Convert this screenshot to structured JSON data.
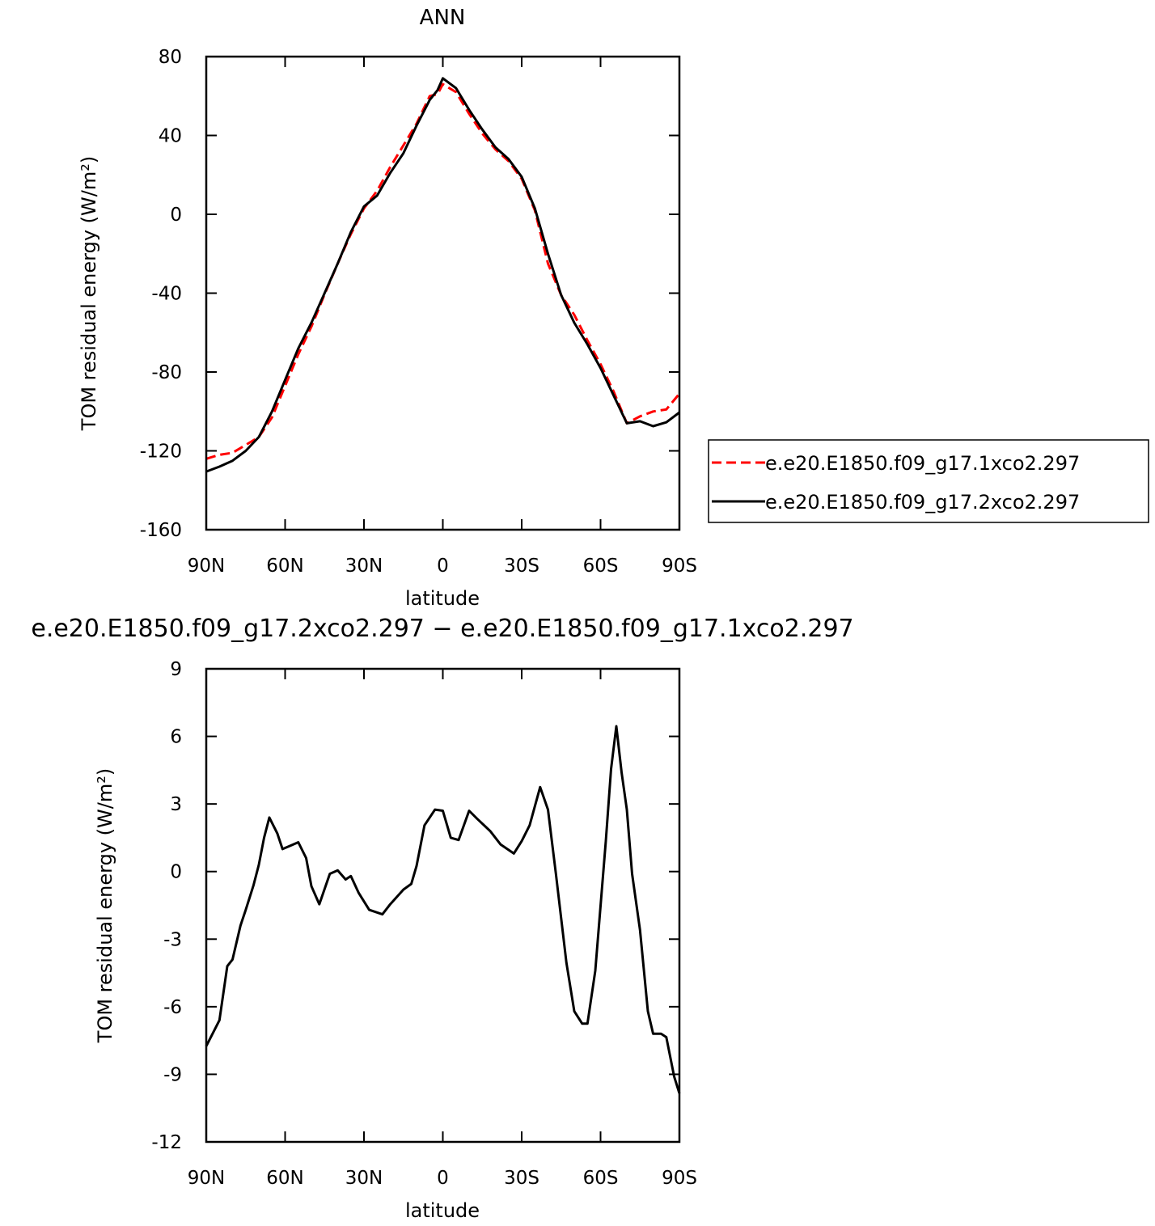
{
  "chart_data": [
    {
      "type": "line",
      "title": "ANN",
      "xlabel": "latitude",
      "ylabel": "TOM residual energy (W/m²)",
      "x": [
        90,
        85,
        80,
        75,
        70,
        65,
        60,
        55,
        50,
        45,
        40,
        35,
        30,
        25,
        20,
        15,
        10,
        5,
        2,
        0,
        -5,
        -10,
        -15,
        -20,
        -25,
        -30,
        -35,
        -40,
        -45,
        -50,
        -55,
        -60,
        -65,
        -70,
        -75,
        -80,
        -85,
        -90
      ],
      "series": [
        {
          "name": "e.e20.E1850.f09_g17.1xco2.297",
          "color": "#ff0000",
          "dash": true,
          "values": [
            -124,
            -122,
            -121,
            -117,
            -113,
            -103,
            -87,
            -71,
            -57,
            -40.6,
            -25,
            -10,
            3,
            12,
            24,
            35,
            46,
            60,
            61,
            66,
            62,
            51,
            41,
            33,
            27,
            18,
            2,
            -25,
            -41,
            -51,
            -64,
            -76,
            -90,
            -106,
            -102.5,
            -100,
            -99,
            -91
          ]
        },
        {
          "name": "e.e20.E1850.f09_g17.2xco2.297",
          "color": "#000000",
          "dash": false,
          "values": [
            -130.5,
            -128,
            -125,
            -120,
            -113,
            -100,
            -84,
            -68,
            -55,
            -40,
            -25,
            -9,
            4,
            9.5,
            21,
            31,
            45,
            58,
            63,
            69,
            64,
            53,
            43,
            34,
            28,
            19,
            3,
            -20,
            -41,
            -55,
            -66,
            -78,
            -92,
            -106,
            -105,
            -107.5,
            -105.5,
            -100.5
          ]
        }
      ],
      "xlim": [
        90,
        -90
      ],
      "xticks": [
        {
          "value": 90,
          "label": "90N"
        },
        {
          "value": 60,
          "label": "60N"
        },
        {
          "value": 30,
          "label": "30N"
        },
        0,
        {
          "value": -30,
          "label": "30S"
        },
        {
          "value": -60,
          "label": "60S"
        },
        {
          "value": -90,
          "label": "90S"
        }
      ],
      "ylim": [
        -160,
        80
      ],
      "yticks": [
        -160,
        -120,
        -80,
        -40,
        0,
        40,
        80
      ],
      "legend": "right"
    },
    {
      "type": "line",
      "title": "e.e20.E1850.f09_g17.2xco2.297 − e.e20.E1850.f09_g17.1xco2.297",
      "xlabel": "latitude",
      "ylabel": "TOM residual energy (W/m²)",
      "x": [
        90,
        85,
        82,
        80,
        77,
        75,
        72,
        70,
        68,
        66,
        63,
        61,
        58,
        55,
        52,
        50,
        47,
        43,
        40,
        37,
        35,
        32,
        28,
        23,
        20,
        15,
        12,
        10,
        7,
        3,
        0,
        -3,
        -6,
        -10,
        -13,
        -18,
        -22,
        -27,
        -30,
        -33,
        -37,
        -40,
        -43,
        -47,
        -50,
        -53,
        -55,
        -58,
        -62,
        -64,
        -66,
        -68,
        -70,
        -72,
        -75,
        -78,
        -80,
        -83,
        -85,
        -88,
        -90
      ],
      "series": [
        {
          "color": "#000000",
          "dash": false,
          "values": [
            -7.75,
            -6.6,
            -4.2,
            -3.9,
            -2.4,
            -1.7,
            -0.6,
            0.3,
            1.5,
            2.4,
            1.7,
            1.0,
            1.15,
            1.3,
            0.6,
            -0.65,
            -1.45,
            -0.1,
            0.05,
            -0.35,
            -0.2,
            -0.95,
            -1.7,
            -1.9,
            -1.45,
            -0.8,
            -0.55,
            0.25,
            2.05,
            2.75,
            2.7,
            1.5,
            1.4,
            2.7,
            2.35,
            1.8,
            1.2,
            0.8,
            1.35,
            2.05,
            3.75,
            2.75,
            -0.1,
            -4.05,
            -6.2,
            -6.75,
            -6.75,
            -4.4,
            1.35,
            4.55,
            6.45,
            4.4,
            2.75,
            -0.1,
            -2.6,
            -6.2,
            -7.2,
            -7.2,
            -7.35,
            -9.1,
            -9.85
          ]
        }
      ],
      "xlim": [
        90,
        -90
      ],
      "xticks": [
        {
          "value": 90,
          "label": "90N"
        },
        {
          "value": 60,
          "label": "60N"
        },
        {
          "value": 30,
          "label": "30N"
        },
        0,
        {
          "value": -30,
          "label": "30S"
        },
        {
          "value": -60,
          "label": "60S"
        },
        {
          "value": -90,
          "label": "90S"
        }
      ],
      "ylim": [
        -12,
        9
      ],
      "yticks": [
        -12,
        -9,
        -6,
        -3,
        0,
        3,
        6,
        9
      ]
    }
  ]
}
